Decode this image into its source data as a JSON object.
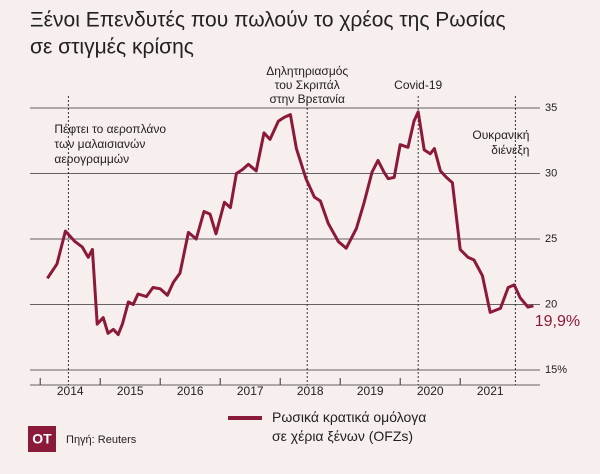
{
  "chart_data": {
    "type": "line",
    "title": [
      "Ξένοι Επενδυτές που πωλούν το χρέος της Ρωσίας",
      "σε στιγμές κρίσης"
    ],
    "x": [
      2014.12,
      2014.28,
      2014.42,
      2014.58,
      2014.7,
      2014.8,
      2014.87,
      2014.95,
      2015.05,
      2015.13,
      2015.22,
      2015.3,
      2015.37,
      2015.47,
      2015.55,
      2015.63,
      2015.77,
      2015.88,
      2016.0,
      2016.12,
      2016.22,
      2016.33,
      2016.47,
      2016.6,
      2016.73,
      2016.83,
      2016.93,
      2017.07,
      2017.17,
      2017.27,
      2017.37,
      2017.47,
      2017.6,
      2017.73,
      2017.83,
      2017.97,
      2018.07,
      2018.17,
      2018.27,
      2018.43,
      2018.57,
      2018.67,
      2018.8,
      2018.97,
      2019.1,
      2019.27,
      2019.4,
      2019.53,
      2019.63,
      2019.73,
      2019.8,
      2019.9,
      2020.0,
      2020.13,
      2020.23,
      2020.3,
      2020.4,
      2020.5,
      2020.57,
      2020.67,
      2020.77,
      2020.87,
      2021.0,
      2021.13,
      2021.23,
      2021.37,
      2021.5,
      2021.67,
      2021.8,
      2021.9,
      2022.0,
      2022.13,
      2022.22
    ],
    "series": [
      {
        "name": "Ρωσικά κρατικά ομόλογα σε χέρια ξένων (OFZs)",
        "color": "#8b1a3a",
        "values": [
          22,
          23.1,
          25.6,
          24.8,
          24.4,
          23.6,
          24.2,
          18.5,
          19,
          17.8,
          18.1,
          17.7,
          18.5,
          20.2,
          20,
          20.8,
          20.6,
          21.3,
          21.2,
          20.7,
          21.7,
          22.4,
          25.5,
          25,
          27.1,
          26.9,
          25.4,
          27.8,
          27.4,
          30,
          30.3,
          30.7,
          30.2,
          33.1,
          32.6,
          34,
          34.3,
          34.5,
          31.9,
          29.6,
          28.2,
          27.9,
          26.2,
          24.8,
          24.3,
          25.8,
          27.8,
          30.1,
          31,
          30.1,
          29.6,
          29.7,
          32.2,
          32,
          34,
          34.7,
          31.8,
          31.5,
          31.9,
          30.2,
          29.7,
          29.3,
          24.2,
          23.6,
          23.4,
          22.2,
          19.4,
          19.7,
          21.3,
          21.5,
          20.5,
          19.8,
          19.9
        ]
      }
    ],
    "last_label": "19,9%",
    "years": [
      "2014",
      "2015",
      "2016",
      "2017",
      "2018",
      "2019",
      "2020",
      "2021"
    ],
    "xlim": [
      2013.83,
      2022.33
    ],
    "ylim": [
      15,
      35.5
    ],
    "yticks": [
      {
        "value": 15,
        "label": "15%"
      },
      20,
      25,
      30,
      35
    ],
    "grid": true,
    "annotations": [
      {
        "x": 2014.47,
        "text": [
          "Πέφτει το αεροπλάνο",
          "των μαλαισιανών",
          "αερογραμμών"
        ]
      },
      {
        "x": 2018.45,
        "text": [
          "Δηλητηριασμός",
          "του Σκριπάλ",
          "στην Βρετανία"
        ]
      },
      {
        "x": 2020.3,
        "text": [
          "Covid-19"
        ]
      },
      {
        "x": 2021.92,
        "text": [
          "Ουκρανική",
          "διένεξη"
        ]
      }
    ],
    "logo": "OT",
    "source": "Πηγή: Reuters"
  }
}
